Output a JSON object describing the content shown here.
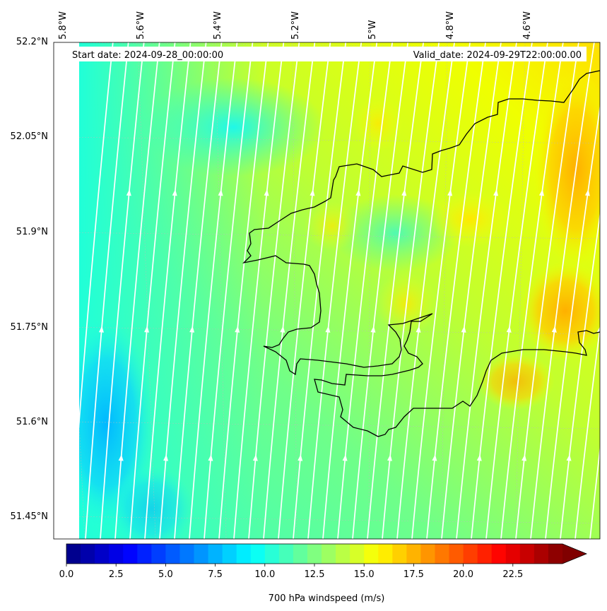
{
  "header": {
    "start_date": "Start date: 2024-09-28_00:00:00",
    "valid_date": "Valid_date: 2024-09-29T22:00:00.00"
  },
  "lon_labels": [
    "5.8°W",
    "5.6°W",
    "5.4°W",
    "5.2°W",
    "5°W",
    "4.8°W",
    "4.6°W"
  ],
  "lat_labels": [
    "52.2°N",
    "52.05°N",
    "51.9°N",
    "51.75°N",
    "51.6°N",
    "51.45°N"
  ],
  "colorbar": {
    "label": "700 hPa windspeed (m/s)",
    "ticks": [
      "0.0",
      "2.5",
      "5.0",
      "7.5",
      "10.0",
      "12.5",
      "15.0",
      "17.5",
      "20.0",
      "22.5"
    ],
    "min": 0,
    "max": 25,
    "extend": "max",
    "colormap": "jet"
  },
  "colors": {
    "coastline": "#000000",
    "streamlines": "#ffffff"
  }
}
